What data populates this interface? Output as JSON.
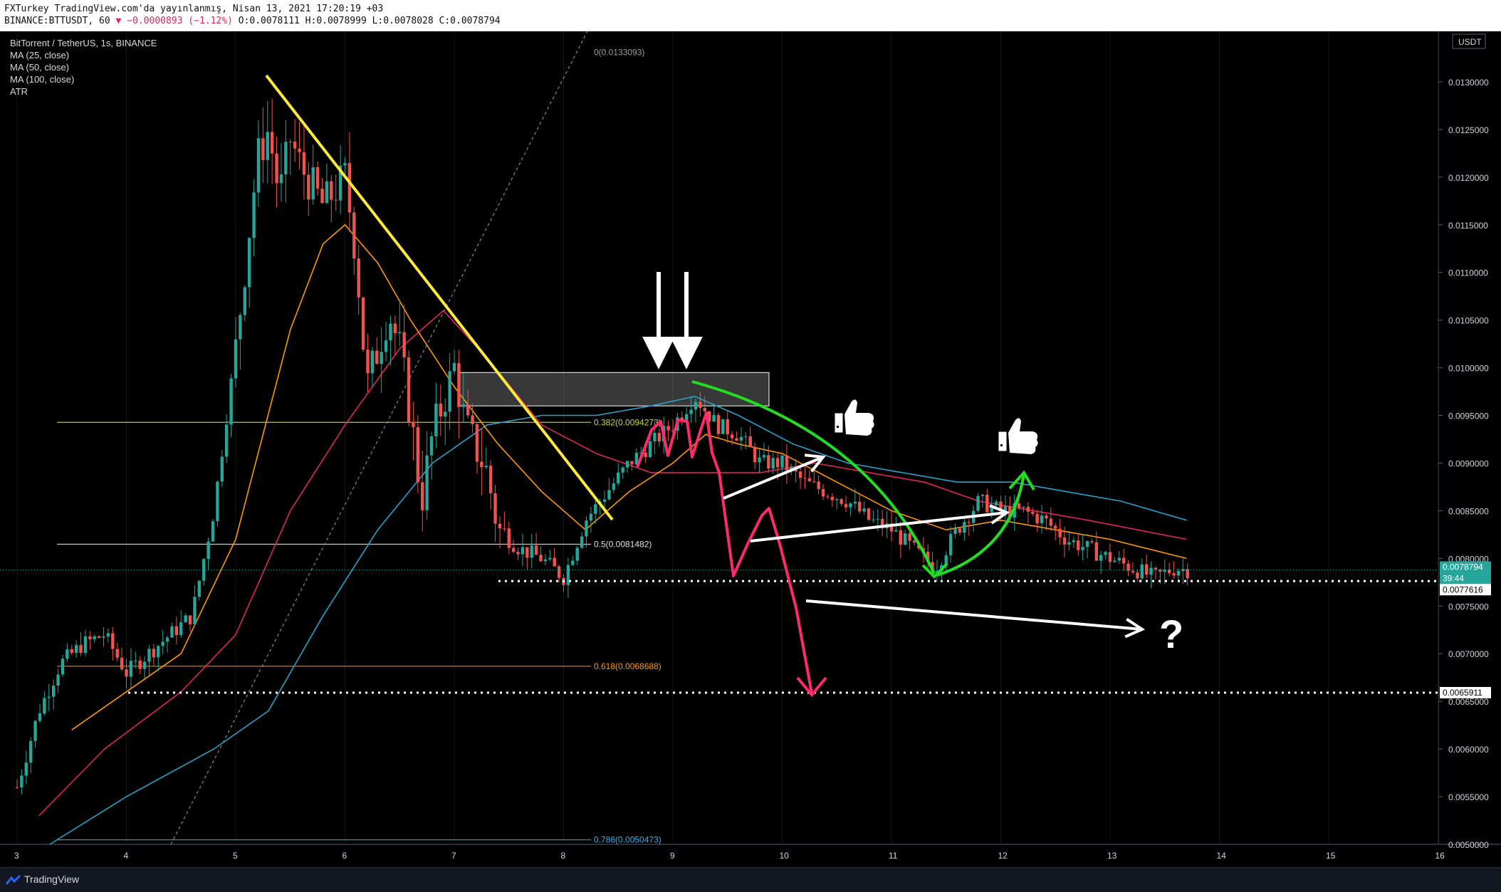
{
  "header": {
    "line1": "FXTurkey TradingView.com'da yayınlanmış, Nisan 13, 2021 17:20:19 +03",
    "symbol": "BINANCE:BTTUSDT, 60",
    "change_arrow": "▼",
    "change": "−0000893 (−1.12%)",
    "open": "O:0.0078111",
    "high": "H:0.0078999",
    "low": "L:0.0078028",
    "close": "C:0.0078794",
    "change_value": "−0.0000893 (−1.12%)"
  },
  "legend": {
    "title": "BitTorrent / TetherUS, 1s, BINANCE",
    "items": [
      "MA (25, close)",
      "MA (50, close)",
      "MA (100, close)",
      "ATR"
    ]
  },
  "axis": {
    "currency": "USDT",
    "last_price": "0.0078794",
    "countdown": "39:44",
    "level1_label": "0.0077616",
    "level2_label": "0.0065911"
  },
  "fib": [
    {
      "label": "0(0.0133093)",
      "value": 0.0133093,
      "color": "#9e9e9e"
    },
    {
      "label": "0.382(0.0094273)",
      "value": 0.0094273,
      "color": "#c6d84c"
    },
    {
      "label": "0.5(0.0081482)",
      "value": 0.0081482,
      "color": "#e0e0e0"
    },
    {
      "label": "0.618(0.0068688)",
      "value": 0.0068688,
      "color": "#ff9800"
    },
    {
      "label": "0.786(0.0050473)",
      "value": 0.0050473,
      "color": "#29b6f6"
    }
  ],
  "annotations": {
    "question": "?"
  },
  "footer": {
    "brand": "TradingView"
  },
  "chart_data": {
    "type": "candlestick",
    "title": "BitTorrent / TetherUS, 1s, BINANCE",
    "ylim": [
      0.005,
      0.0135
    ],
    "y_ticks": [
      "0.0050000",
      "0.0055000",
      "0.0060000",
      "0.0065000",
      "0.0070000",
      "0.0075000",
      "0.0080000",
      "0.0085000",
      "0.0090000",
      "0.0095000",
      "0.0100000",
      "0.0105000",
      "0.0110000",
      "0.0115000",
      "0.0120000",
      "0.0125000",
      "0.0130000"
    ],
    "x_ticks": [
      "3",
      "4",
      "5",
      "6",
      "7",
      "8",
      "9",
      "10",
      "11",
      "12",
      "13",
      "14",
      "15",
      "16"
    ],
    "close_path": [
      [
        3.0,
        0.0056
      ],
      [
        3.2,
        0.0064
      ],
      [
        3.4,
        0.0069
      ],
      [
        3.6,
        0.0071
      ],
      [
        3.8,
        0.0072
      ],
      [
        4.0,
        0.0068
      ],
      [
        4.2,
        0.007
      ],
      [
        4.4,
        0.0072
      ],
      [
        4.6,
        0.0074
      ],
      [
        4.8,
        0.0085
      ],
      [
        5.0,
        0.0102
      ],
      [
        5.1,
        0.0112
      ],
      [
        5.2,
        0.0122
      ],
      [
        5.3,
        0.0125
      ],
      [
        5.4,
        0.0118
      ],
      [
        5.5,
        0.0124
      ],
      [
        5.6,
        0.0121
      ],
      [
        5.8,
        0.0117
      ],
      [
        6.0,
        0.012
      ],
      [
        6.1,
        0.0112
      ],
      [
        6.2,
        0.0098
      ],
      [
        6.4,
        0.0106
      ],
      [
        6.5,
        0.0102
      ],
      [
        6.6,
        0.0095
      ],
      [
        6.7,
        0.0086
      ],
      [
        6.8,
        0.0093
      ],
      [
        7.0,
        0.01
      ],
      [
        7.1,
        0.0094
      ],
      [
        7.3,
        0.0089
      ],
      [
        7.4,
        0.0083
      ],
      [
        7.6,
        0.0081
      ],
      [
        7.8,
        0.008
      ],
      [
        8.0,
        0.0078
      ],
      [
        8.2,
        0.0084
      ],
      [
        8.4,
        0.0087
      ],
      [
        8.6,
        0.009
      ],
      [
        8.8,
        0.0092
      ],
      [
        9.0,
        0.0094
      ],
      [
        9.2,
        0.0097
      ],
      [
        9.4,
        0.0094
      ],
      [
        9.6,
        0.0093
      ],
      [
        9.8,
        0.009
      ],
      [
        10.0,
        0.009
      ],
      [
        10.2,
        0.0088
      ],
      [
        10.4,
        0.0087
      ],
      [
        10.6,
        0.0086
      ],
      [
        10.8,
        0.0084
      ],
      [
        11.0,
        0.0083
      ],
      [
        11.2,
        0.0081
      ],
      [
        11.4,
        0.0079
      ],
      [
        11.6,
        0.0083
      ],
      [
        11.8,
        0.0086
      ],
      [
        12.0,
        0.0085
      ],
      [
        12.2,
        0.0085
      ],
      [
        12.4,
        0.0084
      ],
      [
        12.6,
        0.0082
      ],
      [
        12.8,
        0.0081
      ],
      [
        13.0,
        0.008
      ],
      [
        13.2,
        0.0079
      ],
      [
        13.4,
        0.0078
      ],
      [
        13.6,
        0.0079
      ],
      [
        13.7,
        0.0078794
      ]
    ],
    "ma25": [
      [
        3.5,
        0.0062
      ],
      [
        4.0,
        0.0066
      ],
      [
        4.5,
        0.007
      ],
      [
        5.0,
        0.0082
      ],
      [
        5.5,
        0.0104
      ],
      [
        5.8,
        0.0113
      ],
      [
        6.0,
        0.0115
      ],
      [
        6.3,
        0.0111
      ],
      [
        6.6,
        0.0105
      ],
      [
        7.0,
        0.0098
      ],
      [
        7.4,
        0.0092
      ],
      [
        7.8,
        0.0087
      ],
      [
        8.2,
        0.0083
      ],
      [
        8.6,
        0.0087
      ],
      [
        9.0,
        0.009
      ],
      [
        9.3,
        0.0093
      ],
      [
        9.6,
        0.0092
      ],
      [
        10.0,
        0.0091
      ],
      [
        10.5,
        0.0088
      ],
      [
        11.0,
        0.0085
      ],
      [
        11.5,
        0.0083
      ],
      [
        12.0,
        0.0084
      ],
      [
        12.5,
        0.0083
      ],
      [
        13.0,
        0.0082
      ],
      [
        13.7,
        0.008
      ]
    ],
    "ma50": [
      [
        3.2,
        0.0053
      ],
      [
        3.8,
        0.006
      ],
      [
        4.5,
        0.0066
      ],
      [
        5.0,
        0.0072
      ],
      [
        5.5,
        0.0085
      ],
      [
        6.0,
        0.0094
      ],
      [
        6.5,
        0.0102
      ],
      [
        6.9,
        0.0106
      ],
      [
        7.3,
        0.0101
      ],
      [
        7.8,
        0.0094
      ],
      [
        8.3,
        0.0091
      ],
      [
        8.8,
        0.0089
      ],
      [
        9.3,
        0.0089
      ],
      [
        9.8,
        0.0089
      ],
      [
        10.3,
        0.009
      ],
      [
        10.8,
        0.0089
      ],
      [
        11.3,
        0.0088
      ],
      [
        11.8,
        0.0086
      ],
      [
        12.3,
        0.0085
      ],
      [
        12.8,
        0.0084
      ],
      [
        13.7,
        0.0082
      ]
    ],
    "ma100": [
      [
        3.3,
        0.005
      ],
      [
        4.0,
        0.0055
      ],
      [
        4.8,
        0.006
      ],
      [
        5.3,
        0.0064
      ],
      [
        5.8,
        0.0074
      ],
      [
        6.3,
        0.0083
      ],
      [
        6.8,
        0.009
      ],
      [
        7.3,
        0.0094
      ],
      [
        7.8,
        0.0095
      ],
      [
        8.3,
        0.0095
      ],
      [
        8.8,
        0.0096
      ],
      [
        9.2,
        0.0097
      ],
      [
        9.6,
        0.0095
      ],
      [
        10.1,
        0.0092
      ],
      [
        10.6,
        0.009
      ],
      [
        11.1,
        0.0089
      ],
      [
        11.6,
        0.0088
      ],
      [
        12.1,
        0.0088
      ],
      [
        12.6,
        0.0087
      ],
      [
        13.1,
        0.0086
      ],
      [
        13.7,
        0.0084
      ]
    ]
  }
}
